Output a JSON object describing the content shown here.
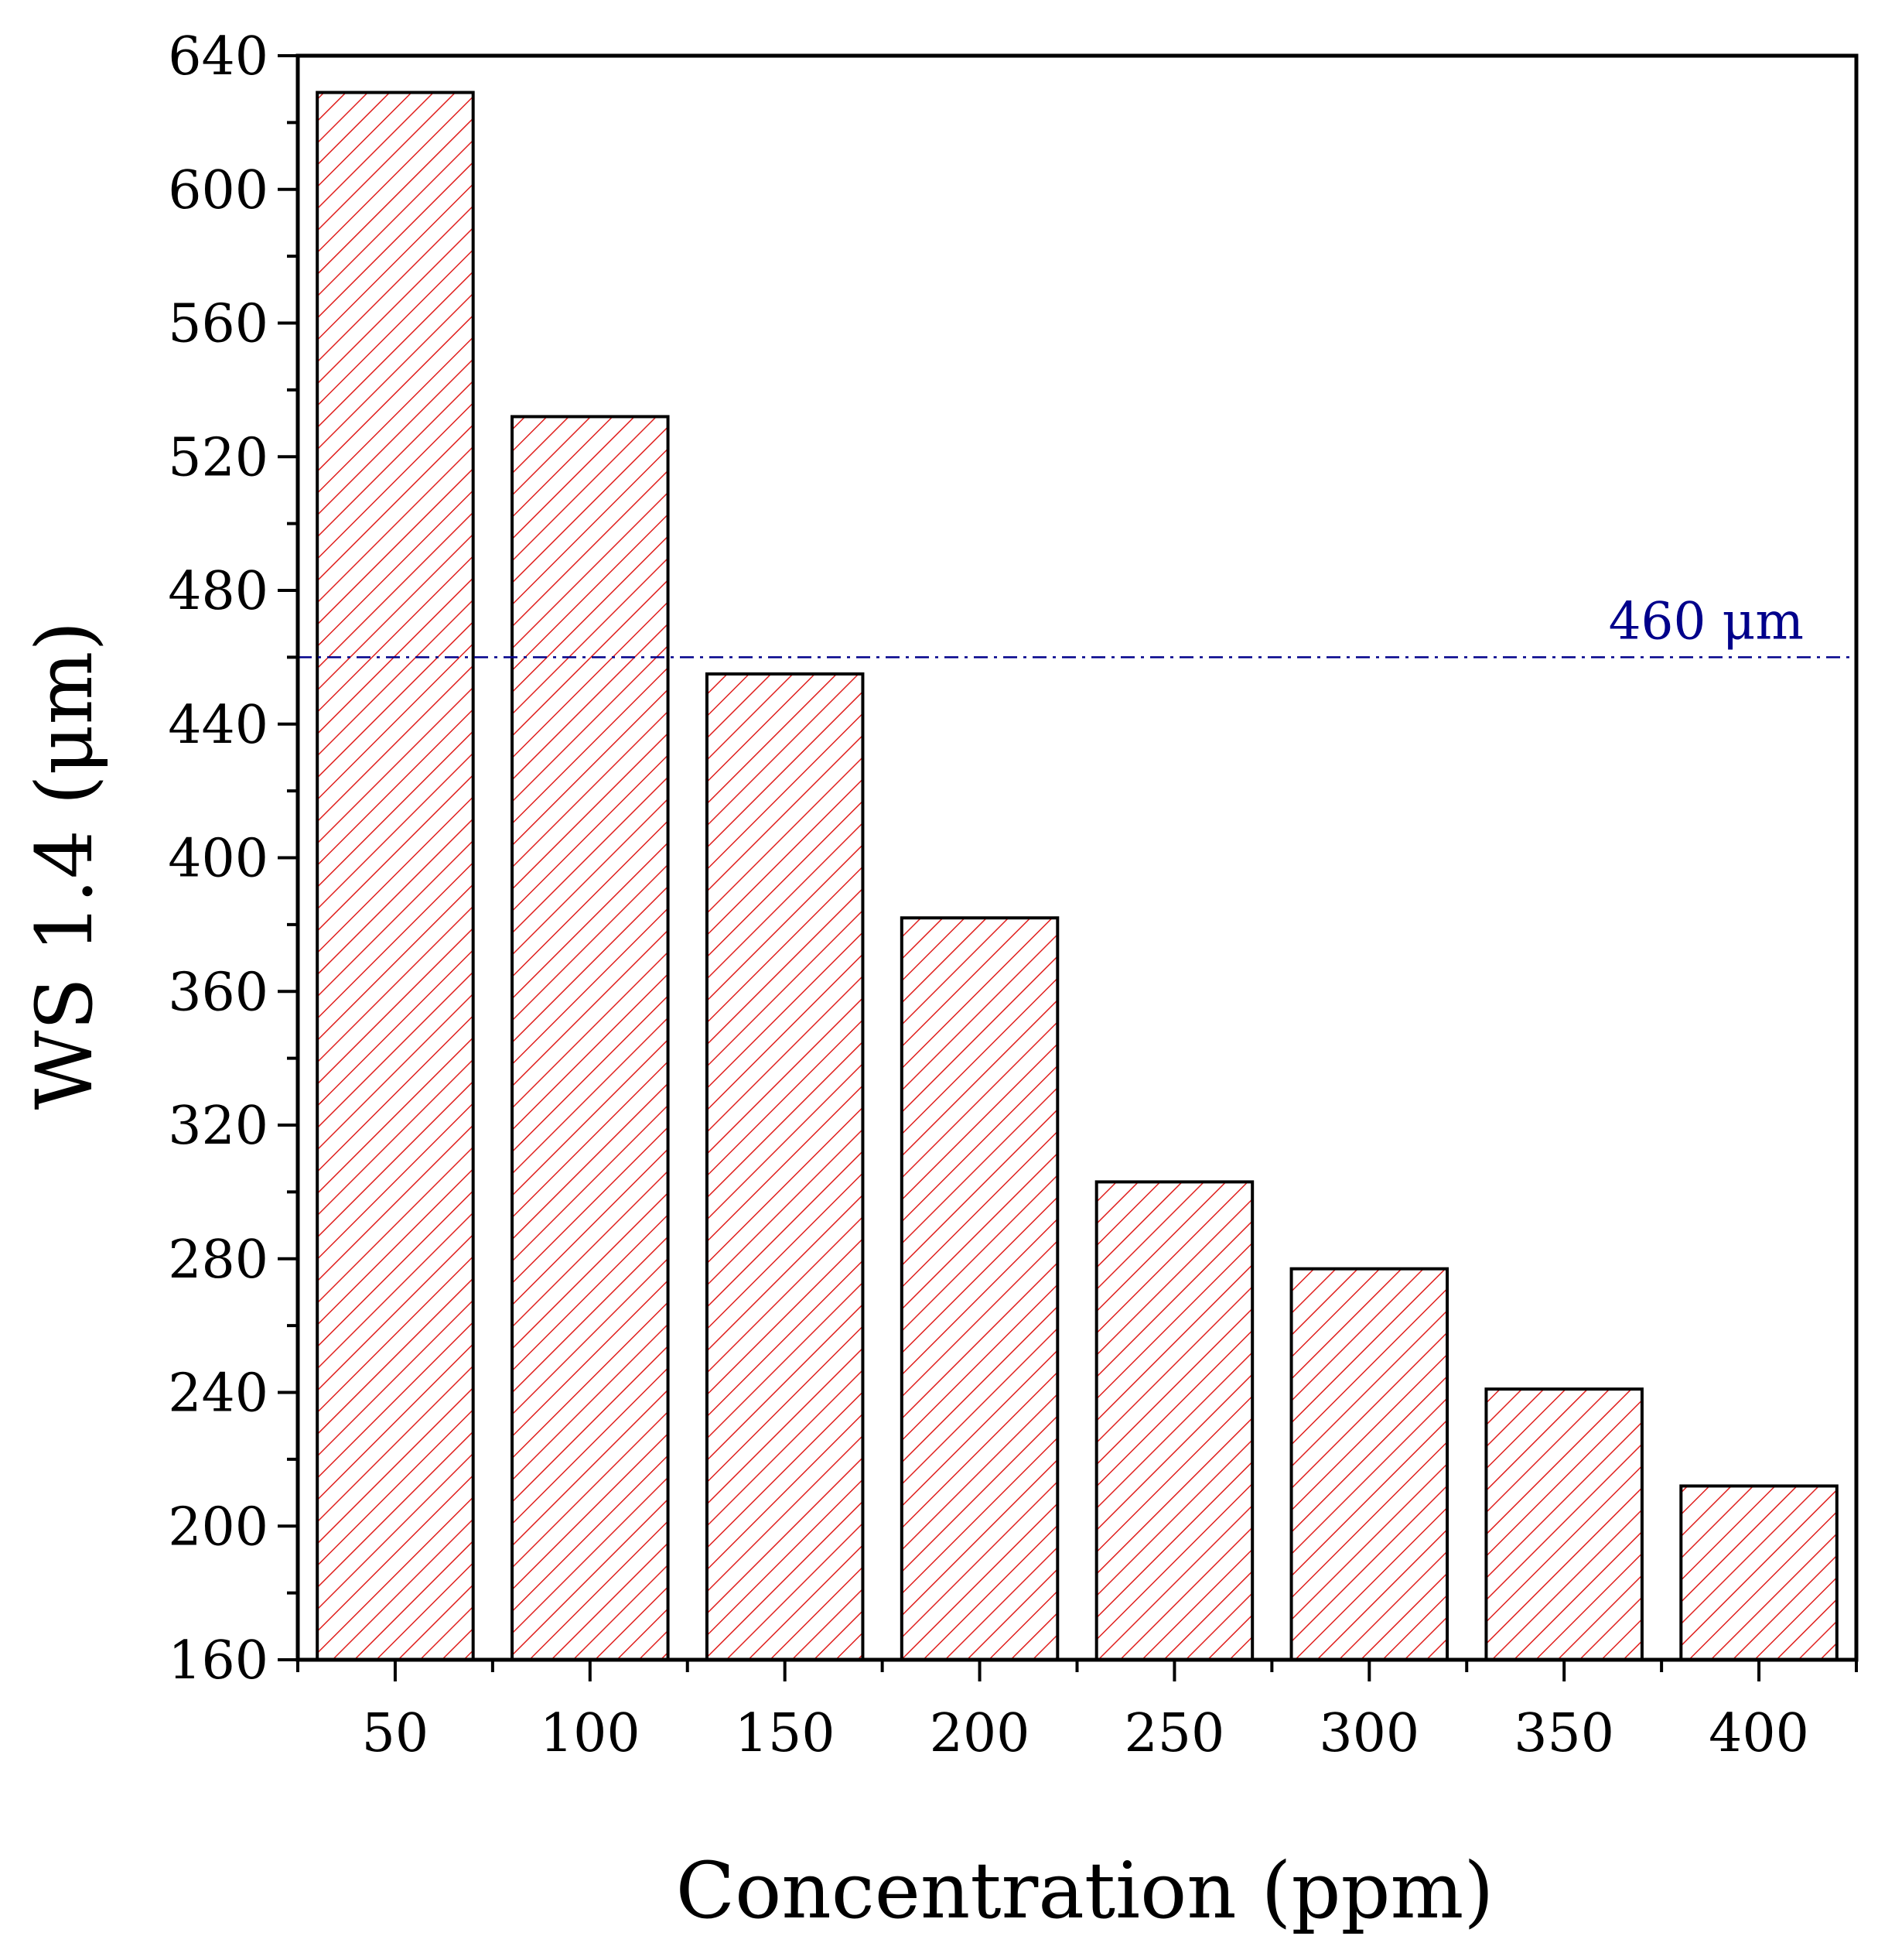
{
  "chart_data": {
    "type": "bar",
    "title": "",
    "xlabel": "Concentration (ppm)",
    "ylabel": "WS 1.4 (μm)",
    "categories": [
      "50",
      "100",
      "150",
      "200",
      "250",
      "300",
      "350",
      "400"
    ],
    "values": [
      629,
      532,
      455,
      382,
      303,
      277,
      241,
      212
    ],
    "ylim": [
      160,
      640
    ],
    "yticks": [
      "160",
      "200",
      "240",
      "280",
      "320",
      "360",
      "400",
      "440",
      "480",
      "520",
      "560",
      "600",
      "640"
    ],
    "reference_line": {
      "value": 460,
      "label": "460 μm",
      "style": "dash-dot",
      "color": "#00008B"
    },
    "bar_style": {
      "fill": "hatched",
      "hatch_color": "#E0201E",
      "edge_color": "#000000"
    },
    "grid": false,
    "legend": "none"
  }
}
